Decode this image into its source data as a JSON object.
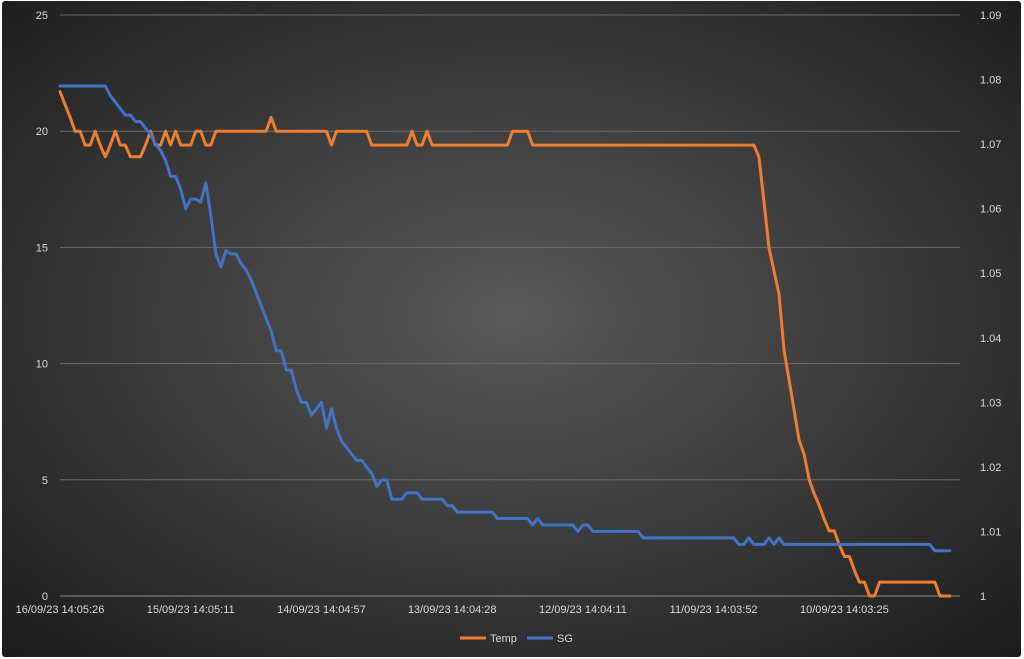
{
  "chart_data": {
    "type": "line",
    "title": "",
    "xlabel": "",
    "ylabel": "",
    "y2label": "",
    "grid": true,
    "legend_position": "bottom",
    "x_tick_labels": [
      "16/09/23 14:05:26",
      "15/09/23 14:05:11",
      "14/09/23 14:04:57",
      "13/09/23 14:04:28",
      "12/09/23 14:04:11",
      "11/09/23 14:03:52",
      "10/09/23 14:03:25"
    ],
    "x_tick_indices": [
      0,
      26,
      52,
      78,
      104,
      130,
      156
    ],
    "n_points": 180,
    "ylim": [
      0,
      25
    ],
    "yticks": [
      "0",
      "5",
      "10",
      "15",
      "20",
      "25"
    ],
    "y2lim": [
      1.0,
      1.09
    ],
    "y2ticks": [
      "1",
      "1.01",
      "1.02",
      "1.03",
      "1.04",
      "1.05",
      "1.06",
      "1.07",
      "1.08",
      "1.09"
    ],
    "series": [
      {
        "name": "Temp",
        "axis": "left",
        "color": "#ed7d31",
        "points": [
          [
            0,
            21.7
          ],
          [
            2,
            20.6
          ],
          [
            3,
            20.0
          ],
          [
            4,
            20.0
          ],
          [
            5,
            19.4
          ],
          [
            6,
            19.4
          ],
          [
            7,
            20.0
          ],
          [
            8,
            19.4
          ],
          [
            9,
            18.9
          ],
          [
            10,
            19.4
          ],
          [
            11,
            20.0
          ],
          [
            12,
            19.4
          ],
          [
            13,
            19.4
          ],
          [
            14,
            18.9
          ],
          [
            16,
            18.9
          ],
          [
            17,
            19.4
          ],
          [
            18,
            20.0
          ],
          [
            19,
            19.4
          ],
          [
            20,
            19.4
          ],
          [
            21,
            20.0
          ],
          [
            22,
            19.4
          ],
          [
            23,
            20.0
          ],
          [
            24,
            19.4
          ],
          [
            26,
            19.4
          ],
          [
            27,
            20.0
          ],
          [
            28,
            20.0
          ],
          [
            29,
            19.4
          ],
          [
            30,
            19.4
          ],
          [
            31,
            20.0
          ],
          [
            41,
            20.0
          ],
          [
            42,
            20.6
          ],
          [
            43,
            20.0
          ],
          [
            53,
            20.0
          ],
          [
            54,
            19.4
          ],
          [
            55,
            20.0
          ],
          [
            61,
            20.0
          ],
          [
            62,
            19.4
          ],
          [
            69,
            19.4
          ],
          [
            70,
            20.0
          ],
          [
            71,
            19.4
          ],
          [
            72,
            19.4
          ],
          [
            73,
            20.0
          ],
          [
            74,
            19.4
          ],
          [
            89,
            19.4
          ],
          [
            90,
            20.0
          ],
          [
            93,
            20.0
          ],
          [
            94,
            19.4
          ],
          [
            138,
            19.4
          ],
          [
            139,
            18.9
          ],
          [
            140,
            17.0
          ],
          [
            141,
            15.0
          ],
          [
            143,
            13.0
          ],
          [
            144,
            10.6
          ],
          [
            146,
            8.0
          ],
          [
            147,
            6.7
          ],
          [
            148,
            6.1
          ],
          [
            149,
            5.0
          ],
          [
            150,
            4.4
          ],
          [
            151,
            3.9
          ],
          [
            152,
            3.3
          ],
          [
            153,
            2.8
          ],
          [
            154,
            2.8
          ],
          [
            155,
            2.2
          ],
          [
            156,
            1.7
          ],
          [
            157,
            1.7
          ],
          [
            158,
            1.1
          ],
          [
            159,
            0.6
          ],
          [
            160,
            0.6
          ],
          [
            161,
            0.0
          ],
          [
            162,
            0.0
          ],
          [
            163,
            0.6
          ],
          [
            174,
            0.6
          ],
          [
            175,
            0.0
          ],
          [
            177,
            0.0
          ]
        ]
      },
      {
        "name": "SG",
        "axis": "right",
        "color": "#4472c4",
        "points": [
          [
            0,
            1.079
          ],
          [
            9,
            1.079
          ],
          [
            10,
            1.0775
          ],
          [
            11,
            1.0765
          ],
          [
            12,
            1.0755
          ],
          [
            13,
            1.0745
          ],
          [
            14,
            1.0745
          ],
          [
            15,
            1.0735
          ],
          [
            16,
            1.0735
          ],
          [
            17,
            1.0725
          ],
          [
            18,
            1.0715
          ],
          [
            19,
            1.07
          ],
          [
            20,
            1.069
          ],
          [
            21,
            1.0675
          ],
          [
            22,
            1.065
          ],
          [
            23,
            1.065
          ],
          [
            24,
            1.063
          ],
          [
            25,
            1.06
          ],
          [
            26,
            1.0615
          ],
          [
            27,
            1.0615
          ],
          [
            28,
            1.061
          ],
          [
            29,
            1.064
          ],
          [
            30,
            1.059
          ],
          [
            31,
            1.053
          ],
          [
            32,
            1.051
          ],
          [
            33,
            1.0535
          ],
          [
            34,
            1.053
          ],
          [
            35,
            1.053
          ],
          [
            36,
            1.0515
          ],
          [
            37,
            1.0505
          ],
          [
            38,
            1.049
          ],
          [
            39,
            1.047
          ],
          [
            40,
            1.045
          ],
          [
            41,
            1.043
          ],
          [
            42,
            1.041
          ],
          [
            43,
            1.038
          ],
          [
            44,
            1.038
          ],
          [
            45,
            1.035
          ],
          [
            46,
            1.035
          ],
          [
            47,
            1.032
          ],
          [
            48,
            1.03
          ],
          [
            49,
            1.03
          ],
          [
            50,
            1.028
          ],
          [
            51,
            1.029
          ],
          [
            52,
            1.03
          ],
          [
            53,
            1.026
          ],
          [
            54,
            1.029
          ],
          [
            55,
            1.026
          ],
          [
            56,
            1.024
          ],
          [
            57,
            1.023
          ],
          [
            58,
            1.022
          ],
          [
            59,
            1.021
          ],
          [
            60,
            1.021
          ],
          [
            61,
            1.02
          ],
          [
            62,
            1.019
          ],
          [
            63,
            1.017
          ],
          [
            64,
            1.018
          ],
          [
            65,
            1.018
          ],
          [
            66,
            1.015
          ],
          [
            68,
            1.015
          ],
          [
            69,
            1.016
          ],
          [
            71,
            1.016
          ],
          [
            72,
            1.015
          ],
          [
            76,
            1.015
          ],
          [
            77,
            1.014
          ],
          [
            78,
            1.014
          ],
          [
            79,
            1.013
          ],
          [
            86,
            1.013
          ],
          [
            87,
            1.012
          ],
          [
            93,
            1.012
          ],
          [
            94,
            1.011
          ],
          [
            95,
            1.012
          ],
          [
            96,
            1.011
          ],
          [
            102,
            1.011
          ],
          [
            103,
            1.01
          ],
          [
            104,
            1.011
          ],
          [
            105,
            1.011
          ],
          [
            106,
            1.01
          ],
          [
            115,
            1.01
          ],
          [
            116,
            1.009
          ],
          [
            134,
            1.009
          ],
          [
            135,
            1.008
          ],
          [
            136,
            1.008
          ],
          [
            137,
            1.009
          ],
          [
            138,
            1.008
          ],
          [
            140,
            1.008
          ],
          [
            141,
            1.009
          ],
          [
            142,
            1.008
          ],
          [
            143,
            1.009
          ],
          [
            144,
            1.008
          ],
          [
            173,
            1.008
          ],
          [
            174,
            1.007
          ],
          [
            177,
            1.007
          ]
        ]
      }
    ]
  }
}
